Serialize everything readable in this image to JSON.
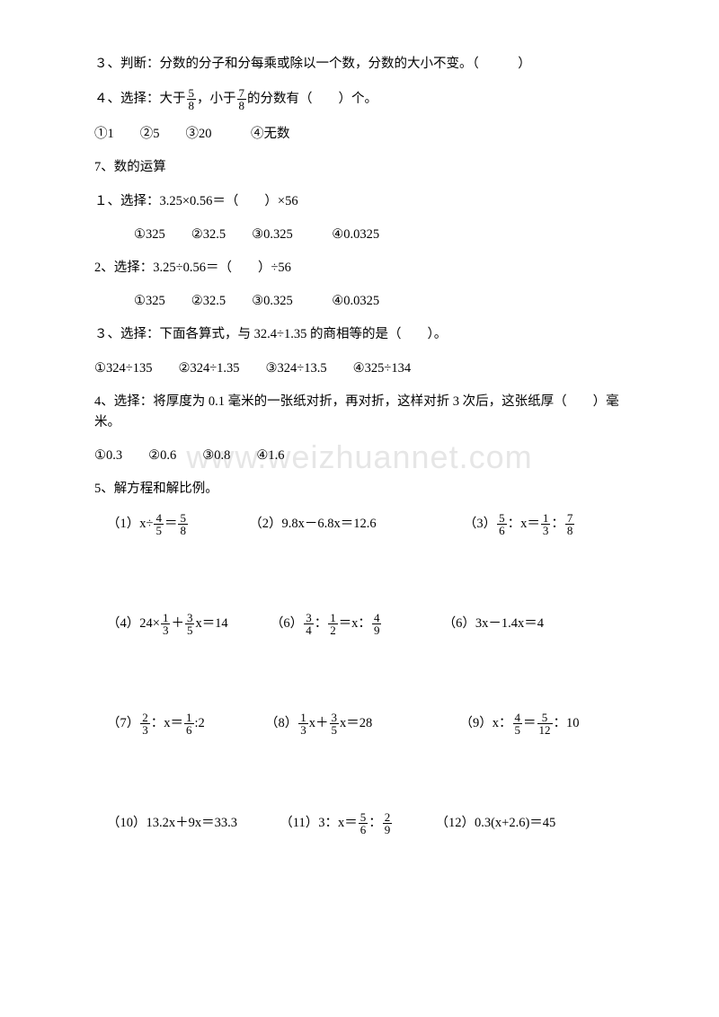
{
  "watermark": "www.weizhuannet.com",
  "q3": "３、判断：分数的分子和分每乘或除以一个数，分数的大小不变。（　　　）",
  "q4_a": "４、选择：大于",
  "q4_b": "，小于",
  "q4_c": "的分数有（　　）个。",
  "f58": {
    "n": "5",
    "d": "8"
  },
  "f78": {
    "n": "7",
    "d": "8"
  },
  "q4_opts": "①1　　②5　　③20　　　④无数",
  "h7": "7、数的运算",
  "q71": "１、选择：3.25×0.56＝（　　）×56",
  "q71_opts": "①325　　②32.5　　③0.325　　　④0.0325",
  "q72": "2、选择：3.25÷0.56＝（　　）÷56",
  "q72_opts": "①325　　②32.5　　③0.325　　　④0.0325",
  "q73": "３、选择：下面各算式，与 32.4÷1.35 的商相等的是（　　）。",
  "q73_opts": "①324÷135　　②324÷1.35　　③324÷13.5　　④325÷134",
  "q74": "4、选择：将厚度为 0.1 毫米的一张纸对折，再对折，这样对折 3 次后，这张纸厚（　　）毫米。",
  "q74_opts": "①0.3　　②0.6　　③0.8　　④1.6",
  "q75": "5、解方程和解比例。",
  "eq1_a": "（1）x÷",
  "eq1_b": "＝",
  "f45": {
    "n": "4",
    "d": "5"
  },
  "f58b": {
    "n": "5",
    "d": "8"
  },
  "eq2": "（2）9.8x－6.8x＝12.6",
  "eq3_a": "（3）",
  "eq3_b": "：x＝",
  "eq3_c": "：",
  "f56": {
    "n": "5",
    "d": "6"
  },
  "f13": {
    "n": "1",
    "d": "3"
  },
  "f78b": {
    "n": "7",
    "d": "8"
  },
  "eq4_a": "（4）24×",
  "eq4_b": "＋",
  "eq4_c": "x＝14",
  "f13b": {
    "n": "1",
    "d": "3"
  },
  "f35": {
    "n": "3",
    "d": "5"
  },
  "eq6a_a": "（6）",
  "eq6a_b": "：",
  "eq6a_c": "＝x：",
  "f34": {
    "n": "3",
    "d": "4"
  },
  "f12": {
    "n": "1",
    "d": "2"
  },
  "f49": {
    "n": "4",
    "d": "9"
  },
  "eq6b": "（6）3x－1.4x＝4",
  "eq7_a": "（7）",
  "eq7_b": "：x＝",
  "eq7_c": ":2",
  "f23": {
    "n": "2",
    "d": "3"
  },
  "f16": {
    "n": "1",
    "d": "6"
  },
  "eq8_a": "（8）",
  "eq8_b": "x＋",
  "eq8_c": "x＝28",
  "f13c": {
    "n": "1",
    "d": "3"
  },
  "f35b": {
    "n": "3",
    "d": "5"
  },
  "eq9_a": "（9）x：",
  "eq9_b": "＝",
  "eq9_c": "：10",
  "f45b": {
    "n": "4",
    "d": "5"
  },
  "f512": {
    "n": "5",
    "d": "12"
  },
  "eq10": "（10）13.2x＋9x＝33.3",
  "eq11_a": "（11）3：x＝",
  "eq11_b": "：",
  "f56b": {
    "n": "5",
    "d": "6"
  },
  "f29": {
    "n": "2",
    "d": "9"
  },
  "eq12": "（12）0.3(x+2.6)＝45"
}
